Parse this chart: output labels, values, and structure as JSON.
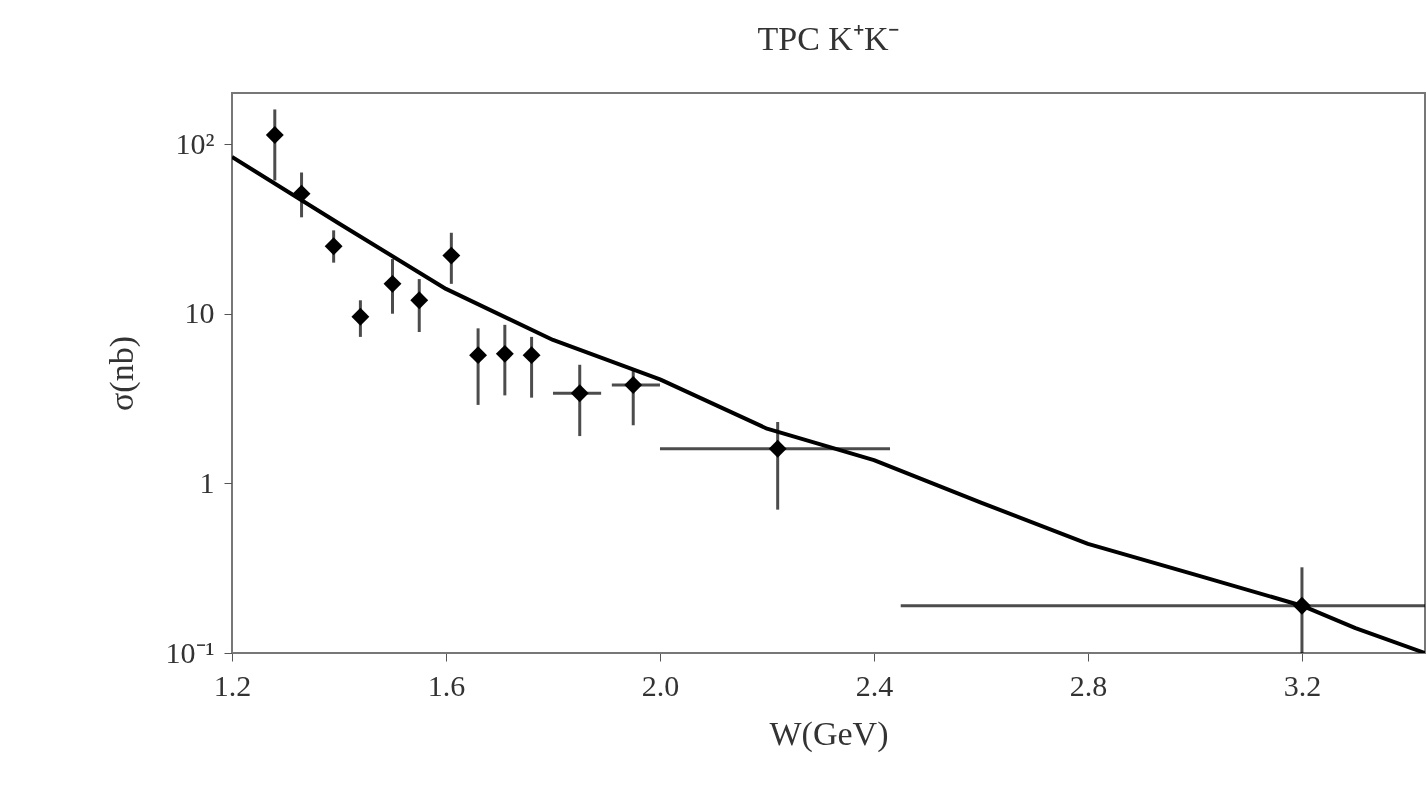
{
  "chart_data": {
    "type": "scatter",
    "title": "TPC   K⁺K⁻",
    "xlabel": "W(GeV)",
    "ylabel": "σ(nb)",
    "log": "y",
    "grid": false,
    "xlim": [
      1.2,
      3.43
    ],
    "xticks": [
      1.2,
      1.6,
      {
        "value": 2,
        "label": "2.0"
      },
      2.4,
      2.8,
      3.2
    ],
    "ylim": [
      0.1,
      200
    ],
    "yticks": [
      {
        "value": 0.1,
        "label": "10⁻¹"
      },
      1,
      10,
      {
        "value": 100,
        "label": "10²"
      }
    ],
    "series": [
      {
        "marker": "diamond",
        "color": "#000000",
        "x": [
          1.28,
          1.33,
          1.39,
          1.44,
          1.5,
          1.55,
          1.61,
          1.66,
          1.71,
          1.76,
          1.85,
          1.95,
          2.22,
          3.2
        ],
        "values": [
          113,
          51,
          25,
          9.6,
          15,
          12,
          22,
          5.7,
          5.8,
          5.7,
          3.4,
          3.8,
          1.6,
          0.19
        ],
        "errors": [
          [
            61,
            160
          ],
          [
            37,
            68
          ],
          [
            20,
            31
          ],
          [
            7.3,
            12
          ],
          [
            10,
            21
          ],
          [
            7.8,
            16
          ],
          [
            15,
            30
          ],
          [
            2.9,
            8.2
          ],
          [
            3.3,
            8.6
          ],
          [
            3.2,
            7.3
          ],
          [
            1.9,
            5
          ],
          [
            2.2,
            4.7
          ],
          [
            0.7,
            2.3
          ],
          [
            0.1,
            0.32
          ]
        ],
        "xerrors": [
          null,
          null,
          null,
          null,
          null,
          null,
          null,
          null,
          null,
          null,
          [
            1.8,
            1.89
          ],
          [
            1.91,
            2.0
          ],
          [
            2.0,
            2.43
          ],
          [
            2.45,
            3.43
          ]
        ]
      },
      {
        "type": "line",
        "color": "#000000",
        "line_style": "solid",
        "x": [
          1.2,
          1.4,
          1.6,
          1.8,
          2.0,
          2.2,
          2.4,
          2.6,
          2.8,
          3.0,
          3.2,
          3.3,
          3.43
        ],
        "values": [
          84,
          34,
          14,
          7,
          4.1,
          2.1,
          1.37,
          0.77,
          0.44,
          0.29,
          0.19,
          0.14,
          0.1
        ]
      }
    ]
  }
}
